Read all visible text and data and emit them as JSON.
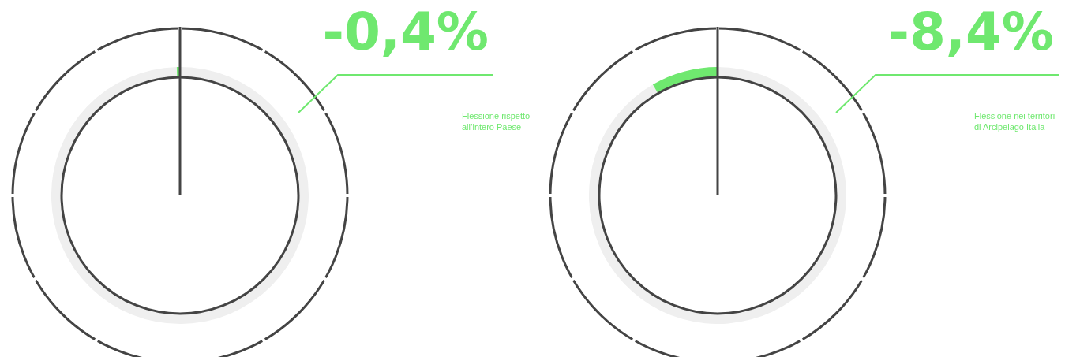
{
  "chart_data": [
    {
      "type": "donut",
      "title": "-0,4%",
      "annotations": [
        "Flessione rispetto all’intero Paese"
      ],
      "categories": [
        null,
        null
      ],
      "values": [
        99.6,
        0.4
      ],
      "colors": [
        "#efefef",
        "#6fe86f"
      ]
    },
    {
      "type": "donut",
      "title": "-8,4%",
      "annotations": [
        "Flessione nei territori di Arcipelago Italia"
      ],
      "categories": [
        null,
        null
      ],
      "values": [
        91.6,
        8.4
      ],
      "colors": [
        "#efefef",
        "#6fe86f"
      ]
    }
  ]
}
